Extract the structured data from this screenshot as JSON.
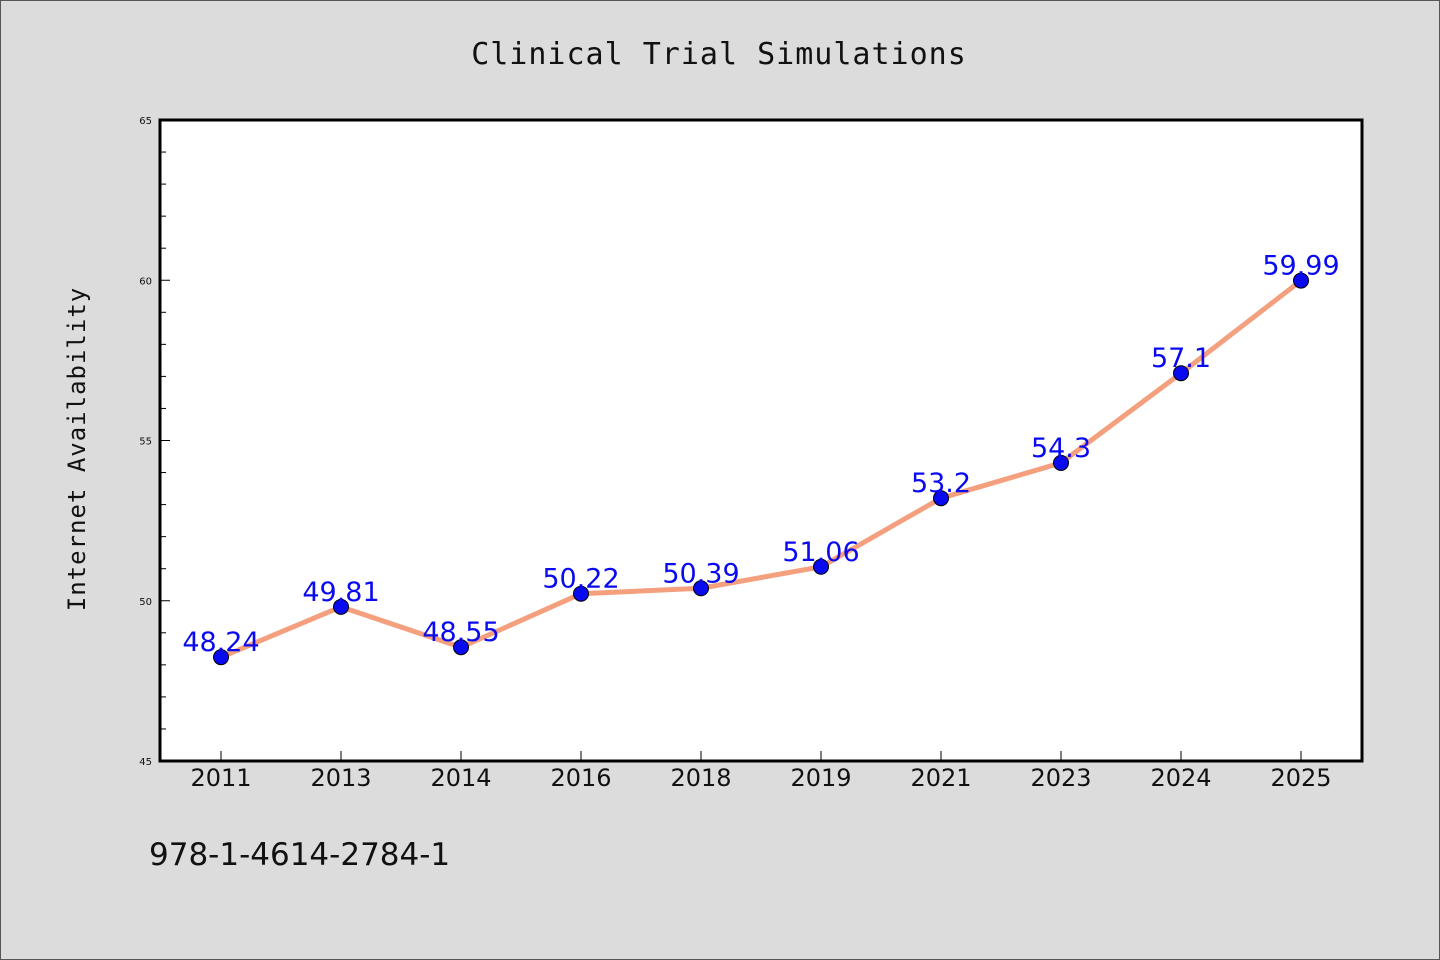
{
  "figure": {
    "isbn_text": "978-1-4614-2784-1"
  },
  "chart_data": {
    "type": "line",
    "title": "Clinical Trial Simulations",
    "xlabel": "",
    "ylabel": "Internet Availability",
    "categories": [
      "2011",
      "2013",
      "2014",
      "2016",
      "2018",
      "2019",
      "2021",
      "2023",
      "2024",
      "2025"
    ],
    "series": [
      {
        "values": [
          48.24,
          49.81,
          48.55,
          50.22,
          50.39,
          51.06,
          53.2,
          54.3,
          57.1,
          59.99
        ],
        "labels": [
          "48.24",
          "49.81",
          "48.55",
          "50.22",
          "50.39",
          "51.06",
          "53.2",
          "54.3",
          "57.1",
          "59.99"
        ],
        "line_color": "#f4a07e",
        "marker_color": "#0a0af0",
        "label_color": "#0a0af0"
      }
    ],
    "ylim": [
      45,
      65
    ],
    "yticks": [
      "45",
      "50",
      "55",
      "60",
      "65"
    ],
    "grid": false,
    "legend": "none",
    "background": "#dcdcdc",
    "plot_background": "#ffffff"
  }
}
